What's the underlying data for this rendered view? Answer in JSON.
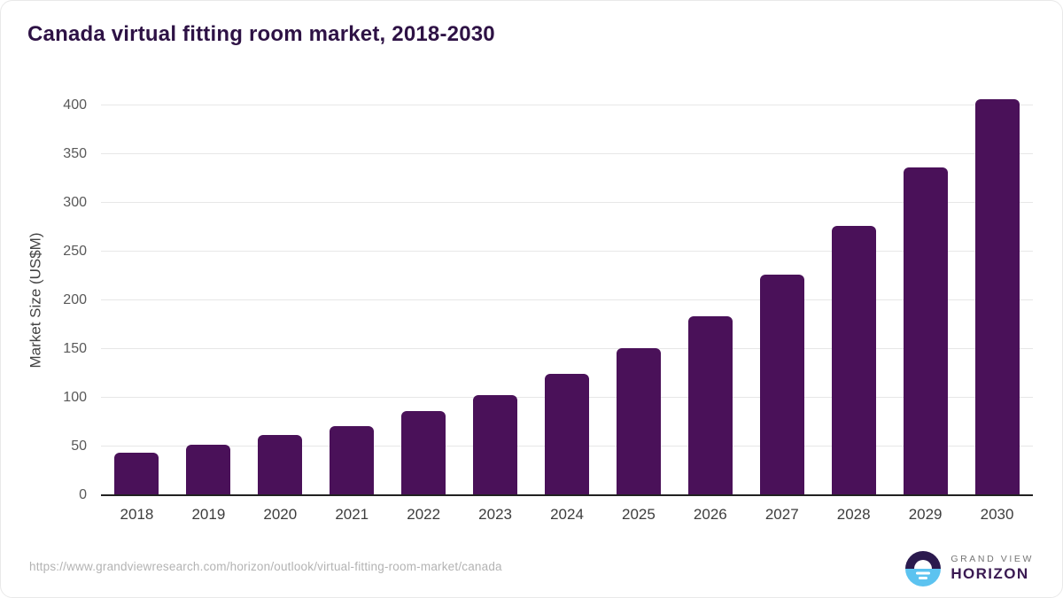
{
  "title": "Canada virtual fitting room market, 2018-2030",
  "chart_data": {
    "type": "bar",
    "title": "Canada virtual fitting room market, 2018-2030",
    "categories": [
      "2018",
      "2019",
      "2020",
      "2021",
      "2022",
      "2023",
      "2024",
      "2025",
      "2026",
      "2027",
      "2028",
      "2029",
      "2030"
    ],
    "values": [
      44,
      52,
      62,
      71,
      86,
      103,
      125,
      151,
      184,
      226,
      276,
      336,
      406
    ],
    "xlabel": "",
    "ylabel": "Market Size (US$M)",
    "ylim": [
      0,
      400
    ],
    "yticks": [
      0,
      50,
      100,
      150,
      200,
      250,
      300,
      350,
      400
    ],
    "grid": true,
    "legend": "none",
    "bar_color": "#4a1159"
  },
  "footer": {
    "source_url": "https://www.grandviewresearch.com/horizon/outlook/virtual-fitting-room-market/canada",
    "brand_top": "GRAND VIEW",
    "brand_bottom": "HORIZON"
  },
  "colors": {
    "title": "#2e1245",
    "bar": "#4a1159",
    "gridline": "#e7e7e7",
    "axis_line": "#212121",
    "tick_text": "#595959",
    "logo_dark": "#2b1a4e",
    "logo_blue": "#5cc3f0"
  }
}
